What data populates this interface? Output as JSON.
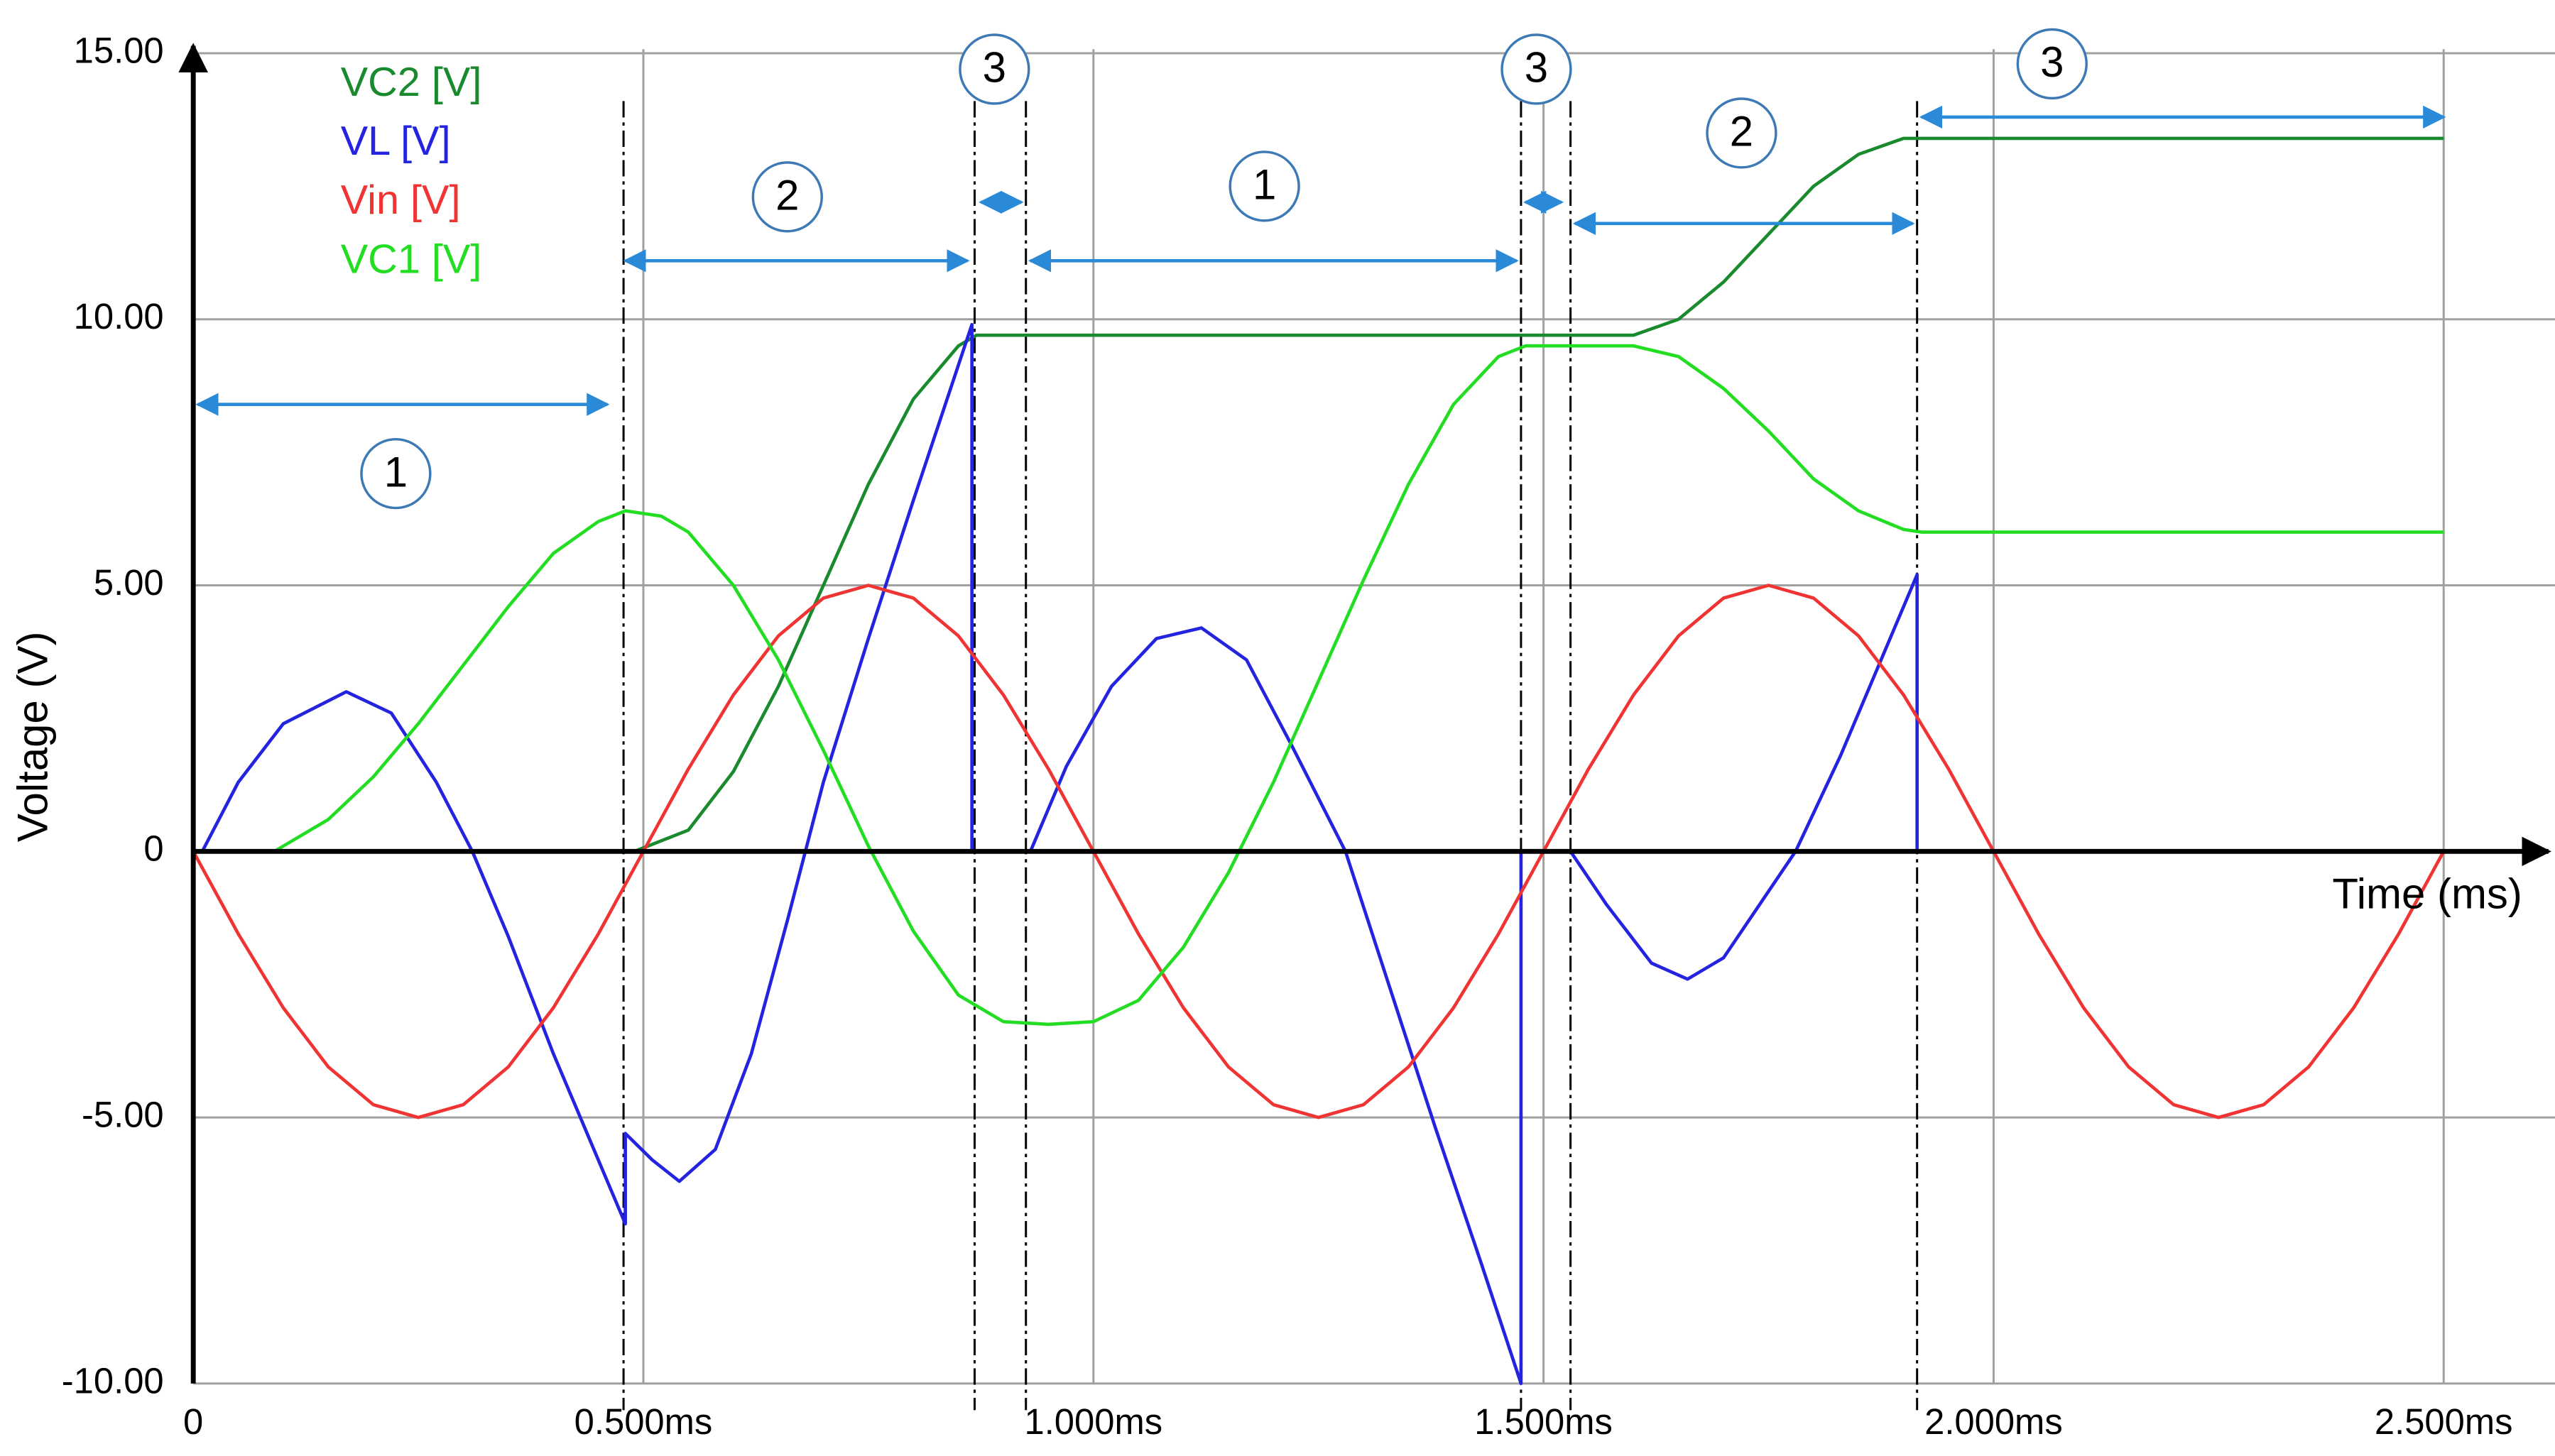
{
  "chart_data": {
    "type": "line",
    "x_label": "Time (ms)",
    "y_label": "Voltage (V)",
    "xlim": [
      0,
      2.58
    ],
    "ylim": [
      -10,
      15.5
    ],
    "xticks": [
      0,
      {
        "value": 0.5,
        "label": "0.500ms"
      },
      {
        "value": 1.0,
        "label": "1.000ms"
      },
      {
        "value": 1.5,
        "label": "1.500ms"
      },
      {
        "value": 2.0,
        "label": "2.000ms"
      },
      {
        "value": 2.5,
        "label": "2.500ms"
      }
    ],
    "yticks": [
      {
        "value": 15,
        "label": "15.00"
      },
      {
        "value": 10,
        "label": "10.00"
      },
      {
        "value": 5,
        "label": "5.00"
      },
      0,
      {
        "value": -5,
        "label": "-5.00"
      },
      {
        "value": -10,
        "label": "-10.00"
      }
    ],
    "grid": true,
    "legend": "upper left",
    "series": [
      {
        "name": "VC2 [V]",
        "color": "#1a8a2e",
        "x": [
          0.49,
          0.55,
          0.6,
          0.65,
          0.7,
          0.75,
          0.8,
          0.85,
          0.87,
          1.6,
          1.65,
          1.7,
          1.75,
          1.8,
          1.85,
          1.9,
          1.92,
          2.5
        ],
        "values": [
          0,
          0.4,
          1.5,
          3.1,
          5.0,
          6.9,
          8.5,
          9.5,
          9.7,
          9.7,
          10.0,
          10.7,
          11.6,
          12.5,
          13.1,
          13.4,
          13.4,
          13.4
        ]
      },
      {
        "name": "VL [V]",
        "color": "#2323e0",
        "x": [
          0.01,
          0.05,
          0.1,
          0.17,
          0.22,
          0.27,
          0.31,
          0.35,
          0.4,
          0.45,
          0.48,
          0.48,
          0.51,
          0.54,
          0.58,
          0.62,
          0.66,
          0.7,
          0.75,
          0.8,
          0.865,
          0.865,
          0.93,
          0.97,
          1.02,
          1.07,
          1.12,
          1.17,
          1.22,
          1.28,
          1.33,
          1.38,
          1.43,
          1.475,
          1.475,
          1.53,
          1.57,
          1.62,
          1.66,
          1.7,
          1.74,
          1.78,
          1.83,
          1.88,
          1.915,
          1.915,
          2.5
        ],
        "values": [
          0,
          1.3,
          2.4,
          3.0,
          2.6,
          1.3,
          0,
          -1.6,
          -3.8,
          -5.8,
          -7.0,
          -5.3,
          -5.8,
          -6.2,
          -5.6,
          -3.8,
          -1.3,
          1.3,
          4.0,
          6.6,
          9.9,
          0,
          0,
          1.6,
          3.1,
          4.0,
          4.2,
          3.6,
          2.0,
          0,
          -2.6,
          -5.2,
          -7.7,
          -10.0,
          0,
          0,
          -1.0,
          -2.1,
          -2.4,
          -2.0,
          -1.0,
          0,
          1.8,
          3.8,
          5.2,
          0,
          0
        ]
      },
      {
        "name": "Vin [V]",
        "color": "#f03333",
        "x": [
          0,
          0.05,
          0.1,
          0.15,
          0.2,
          0.25,
          0.3,
          0.35,
          0.4,
          0.45,
          0.5,
          0.55,
          0.6,
          0.65,
          0.7,
          0.75,
          0.8,
          0.85,
          0.9,
          0.95,
          1.0,
          1.05,
          1.1,
          1.15,
          1.2,
          1.25,
          1.3,
          1.35,
          1.4,
          1.45,
          1.5,
          1.55,
          1.6,
          1.65,
          1.7,
          1.75,
          1.8,
          1.85,
          1.9,
          1.95,
          2.0,
          2.05,
          2.1,
          2.15,
          2.2,
          2.25,
          2.3,
          2.35,
          2.4,
          2.45,
          2.5
        ],
        "values": [
          0,
          -1.55,
          -2.94,
          -4.05,
          -4.76,
          -5,
          -4.76,
          -4.05,
          -2.94,
          -1.55,
          0,
          1.55,
          2.94,
          4.05,
          4.76,
          5,
          4.76,
          4.05,
          2.94,
          1.55,
          0,
          -1.55,
          -2.94,
          -4.05,
          -4.76,
          -5,
          -4.76,
          -4.05,
          -2.94,
          -1.55,
          0,
          1.55,
          2.94,
          4.05,
          4.76,
          5,
          4.76,
          4.05,
          2.94,
          1.55,
          0,
          -1.55,
          -2.94,
          -4.05,
          -4.76,
          -5,
          -4.76,
          -4.05,
          -2.94,
          -1.55,
          0
        ]
      },
      {
        "name": "VC1 [V]",
        "color": "#22dd22",
        "x": [
          0.09,
          0.15,
          0.2,
          0.25,
          0.3,
          0.35,
          0.4,
          0.45,
          0.48,
          0.52,
          0.55,
          0.6,
          0.65,
          0.7,
          0.75,
          0.8,
          0.85,
          0.9,
          0.95,
          1.0,
          1.05,
          1.1,
          1.15,
          1.2,
          1.25,
          1.3,
          1.35,
          1.4,
          1.45,
          1.48,
          1.6,
          1.65,
          1.7,
          1.75,
          1.8,
          1.85,
          1.9,
          1.92,
          2.5
        ],
        "values": [
          0,
          0.6,
          1.4,
          2.4,
          3.5,
          4.6,
          5.6,
          6.2,
          6.4,
          6.3,
          6.0,
          5.0,
          3.6,
          1.9,
          0.1,
          -1.5,
          -2.7,
          -3.2,
          -3.25,
          -3.2,
          -2.8,
          -1.8,
          -0.4,
          1.3,
          3.2,
          5.1,
          6.9,
          8.4,
          9.3,
          9.5,
          9.5,
          9.3,
          8.7,
          7.9,
          7.0,
          6.4,
          6.05,
          6.0,
          6.0
        ]
      }
    ],
    "phase_lines": [
      0.478,
      0.868,
      0.925,
      1.475,
      1.53,
      1.915
    ],
    "annotations": [
      {
        "text": "1",
        "x": 0.225,
        "y": 7.1,
        "span": [
          0.005,
          0.46
        ],
        "span_y": 8.4
      },
      {
        "text": "2",
        "x": 0.66,
        "y": 12.3,
        "span": [
          0.48,
          0.86
        ],
        "span_y": 11.1
      },
      {
        "text": "3",
        "x": 0.89,
        "y": 14.7,
        "span": [
          0.875,
          0.92
        ],
        "span_y": 12.2
      },
      {
        "text": "1",
        "x": 1.19,
        "y": 12.5,
        "span": [
          0.93,
          1.47
        ],
        "span_y": 11.1
      },
      {
        "text": "3",
        "x": 1.492,
        "y": 14.7,
        "span": [
          1.48,
          1.52
        ],
        "span_y": 12.2
      },
      {
        "text": "2",
        "x": 1.72,
        "y": 13.5,
        "span": [
          1.535,
          1.91
        ],
        "span_y": 11.8
      },
      {
        "text": "3",
        "x": 2.065,
        "y": 14.8,
        "span": [
          1.92,
          2.5
        ],
        "span_y": 13.8
      }
    ]
  }
}
